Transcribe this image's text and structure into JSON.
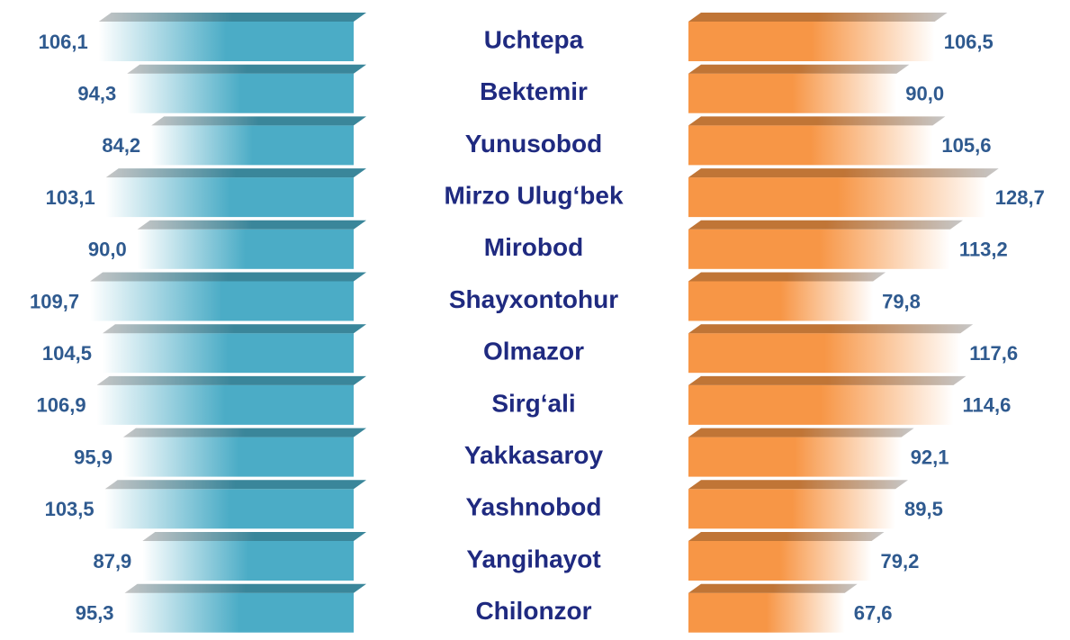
{
  "chart_data": {
    "type": "butterfly_bar",
    "categories": [
      "Uchtepa",
      "Bektemir",
      "Yunusobod",
      "Mirzo Ulug‘bek",
      "Mirobod",
      "Shayxontohur",
      "Olmazor",
      "Sirg‘ali",
      "Yakkasaroy",
      "Yashnobod",
      "Yangihayot",
      "Chilonzor"
    ],
    "series": [
      {
        "color": "#4bacc6",
        "values": [
          106.1,
          94.3,
          84.2,
          103.1,
          90.0,
          109.7,
          104.5,
          106.9,
          95.9,
          103.5,
          87.9,
          95.3
        ],
        "value_labels": [
          "106,1",
          "94,3",
          "84,2",
          "103,1",
          "90,0",
          "109,7",
          "104,5",
          "106,9",
          "95,9",
          "103,5",
          "87,9",
          "95,3"
        ]
      },
      {
        "color": "#f79646",
        "values": [
          106.5,
          90.0,
          105.6,
          128.7,
          113.2,
          79.8,
          117.6,
          114.6,
          92.1,
          89.5,
          79.2,
          67.6
        ],
        "value_labels": [
          "106,5",
          "90,0",
          "105,6",
          "128,7",
          "113,2",
          "79,8",
          "117,6",
          "114,6",
          "92,1",
          "89,5",
          "79,2",
          "67,6"
        ]
      }
    ]
  }
}
